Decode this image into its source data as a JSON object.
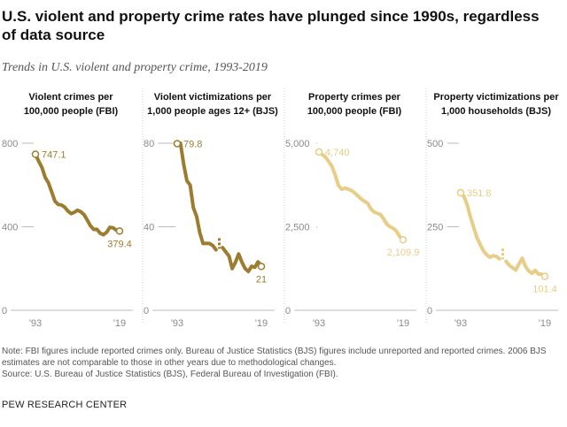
{
  "title": "U.S. violent and property crime rates have plunged since 1990s, regardless of data source",
  "subtitle": "Trends in U.S. violent and property crime, 1993-2019",
  "note": "Note: FBI figures include reported crimes only. Bureau of Justice Statistics (BJS) figures include unreported and reported crimes. 2006 BJS estimates are not comparable to those in other years due to methodological changes.",
  "source": "Source: U.S. Bureau of Justice Statistics (BJS), Federal Bureau of Investigation (FBI).",
  "credit": "PEW RESEARCH CENTER",
  "colors": {
    "dark": "#9c7d2f",
    "light": "#e8cd86",
    "axis": "#bbbbbb",
    "divider": "#cccccc"
  },
  "chart_data": [
    {
      "type": "line",
      "title_lines": [
        "Violent crimes per",
        "100,000 people (FBI)"
      ],
      "color": "dark",
      "ylim": [
        0,
        800
      ],
      "yticks": [
        0,
        400,
        800
      ],
      "ytick_labels": [
        "0",
        "400",
        "800"
      ],
      "xtick_labels": [
        "'93",
        "'19"
      ],
      "start_label": "747.1",
      "end_label": "379.4",
      "segments": [
        {
          "x": [
            1993,
            1994,
            1995,
            1996,
            1997,
            1998,
            1999,
            2000,
            2001,
            2002,
            2003,
            2004,
            2005,
            2006,
            2007,
            2008,
            2009,
            2010,
            2011,
            2012,
            2013,
            2014,
            2015,
            2016,
            2017,
            2018,
            2019
          ],
          "y": [
            747.1,
            713.6,
            684.5,
            636.6,
            611.0,
            567.6,
            523.0,
            506.5,
            504.5,
            494.4,
            475.8,
            463.2,
            469.0,
            479.3,
            471.8,
            458.6,
            431.9,
            404.5,
            387.1,
            387.8,
            369.1,
            361.6,
            373.7,
            397.5,
            394.9,
            383.4,
            379.4
          ]
        }
      ]
    },
    {
      "type": "line",
      "title_lines": [
        "Violent victimizations per",
        "1,000 people ages 12+ (BJS)"
      ],
      "color": "dark",
      "ylim": [
        0,
        80
      ],
      "yticks": [
        0,
        40,
        80
      ],
      "ytick_labels": [
        "0",
        "40",
        "80"
      ],
      "xtick_labels": [
        "'93",
        "'19"
      ],
      "start_label": "79.8",
      "end_label": "21",
      "segments": [
        {
          "x": [
            1993,
            1994,
            1995,
            1996,
            1997,
            1998,
            1999,
            2000,
            2001,
            2002,
            2003,
            2004,
            2005
          ],
          "y": [
            79.8,
            80.0,
            70.0,
            62.0,
            60.0,
            49.0,
            45.0,
            37.0,
            32.0,
            32.0,
            32.0,
            31.0,
            29.0
          ]
        },
        {
          "x": [
            2006
          ],
          "y": [
            32.0
          ],
          "dashed": true
        },
        {
          "x": [
            2007,
            2008,
            2009,
            2010,
            2011,
            2012,
            2013,
            2014,
            2015,
            2016,
            2017,
            2018,
            2019
          ],
          "y": [
            30.0,
            28.0,
            26.0,
            20.0,
            23.0,
            27.0,
            23.0,
            20.0,
            18.6,
            21.1,
            20.6,
            23.2,
            21.0
          ]
        }
      ]
    },
    {
      "type": "line",
      "title_lines": [
        "Property crimes per",
        "100,000 people (FBI)"
      ],
      "color": "light",
      "ylim": [
        0,
        5000
      ],
      "yticks": [
        0,
        2500,
        5000
      ],
      "ytick_labels": [
        "0",
        "2,500",
        "5,000"
      ],
      "xtick_labels": [
        "'93",
        "'19"
      ],
      "start_label": "4,740",
      "end_label": "2,109.9",
      "segments": [
        {
          "x": [
            1993,
            1994,
            1995,
            1996,
            1997,
            1998,
            1999,
            2000,
            2001,
            2002,
            2003,
            2004,
            2005,
            2006,
            2007,
            2008,
            2009,
            2010,
            2011,
            2012,
            2013,
            2014,
            2015,
            2016,
            2017,
            2018,
            2019
          ],
          "y": [
            4740,
            4660,
            4591,
            4450,
            4312,
            4052,
            3743,
            3618,
            3658,
            3630,
            3591,
            3514,
            3432,
            3335,
            3263,
            3212,
            3041,
            2945,
            2905,
            2868,
            2734,
            2574,
            2500,
            2451,
            2362,
            2200,
            2109.9
          ]
        }
      ]
    },
    {
      "type": "line",
      "title_lines": [
        "Property victimizations per",
        "1,000 households (BJS)"
      ],
      "color": "light",
      "ylim": [
        0,
        500
      ],
      "yticks": [
        0,
        250,
        500
      ],
      "ytick_labels": [
        "0",
        "250",
        "500"
      ],
      "xtick_labels": [
        "'93",
        "'19"
      ],
      "start_label": "351.8",
      "end_label": "101.4",
      "segments": [
        {
          "x": [
            1993,
            1994,
            1995,
            1996,
            1997,
            1998,
            1999,
            2000,
            2001,
            2002,
            2003,
            2004,
            2005
          ],
          "y": [
            351.8,
            341.2,
            315.5,
            279.5,
            248.3,
            217.4,
            198.0,
            178.1,
            166.9,
            159.0,
            163.2,
            161.1,
            154.0
          ]
        },
        {
          "x": [
            2006
          ],
          "y": [
            169.0
          ],
          "dashed": true
        },
        {
          "x": [
            2007,
            2008,
            2009,
            2010,
            2011,
            2012,
            2013,
            2014,
            2015,
            2016,
            2017,
            2018,
            2019
          ],
          "y": [
            146.5,
            134.7,
            127.4,
            120.2,
            138.7,
            155.8,
            131.4,
            118.1,
            110.7,
            119.4,
            108.4,
            108.2,
            101.4
          ]
        }
      ]
    }
  ]
}
